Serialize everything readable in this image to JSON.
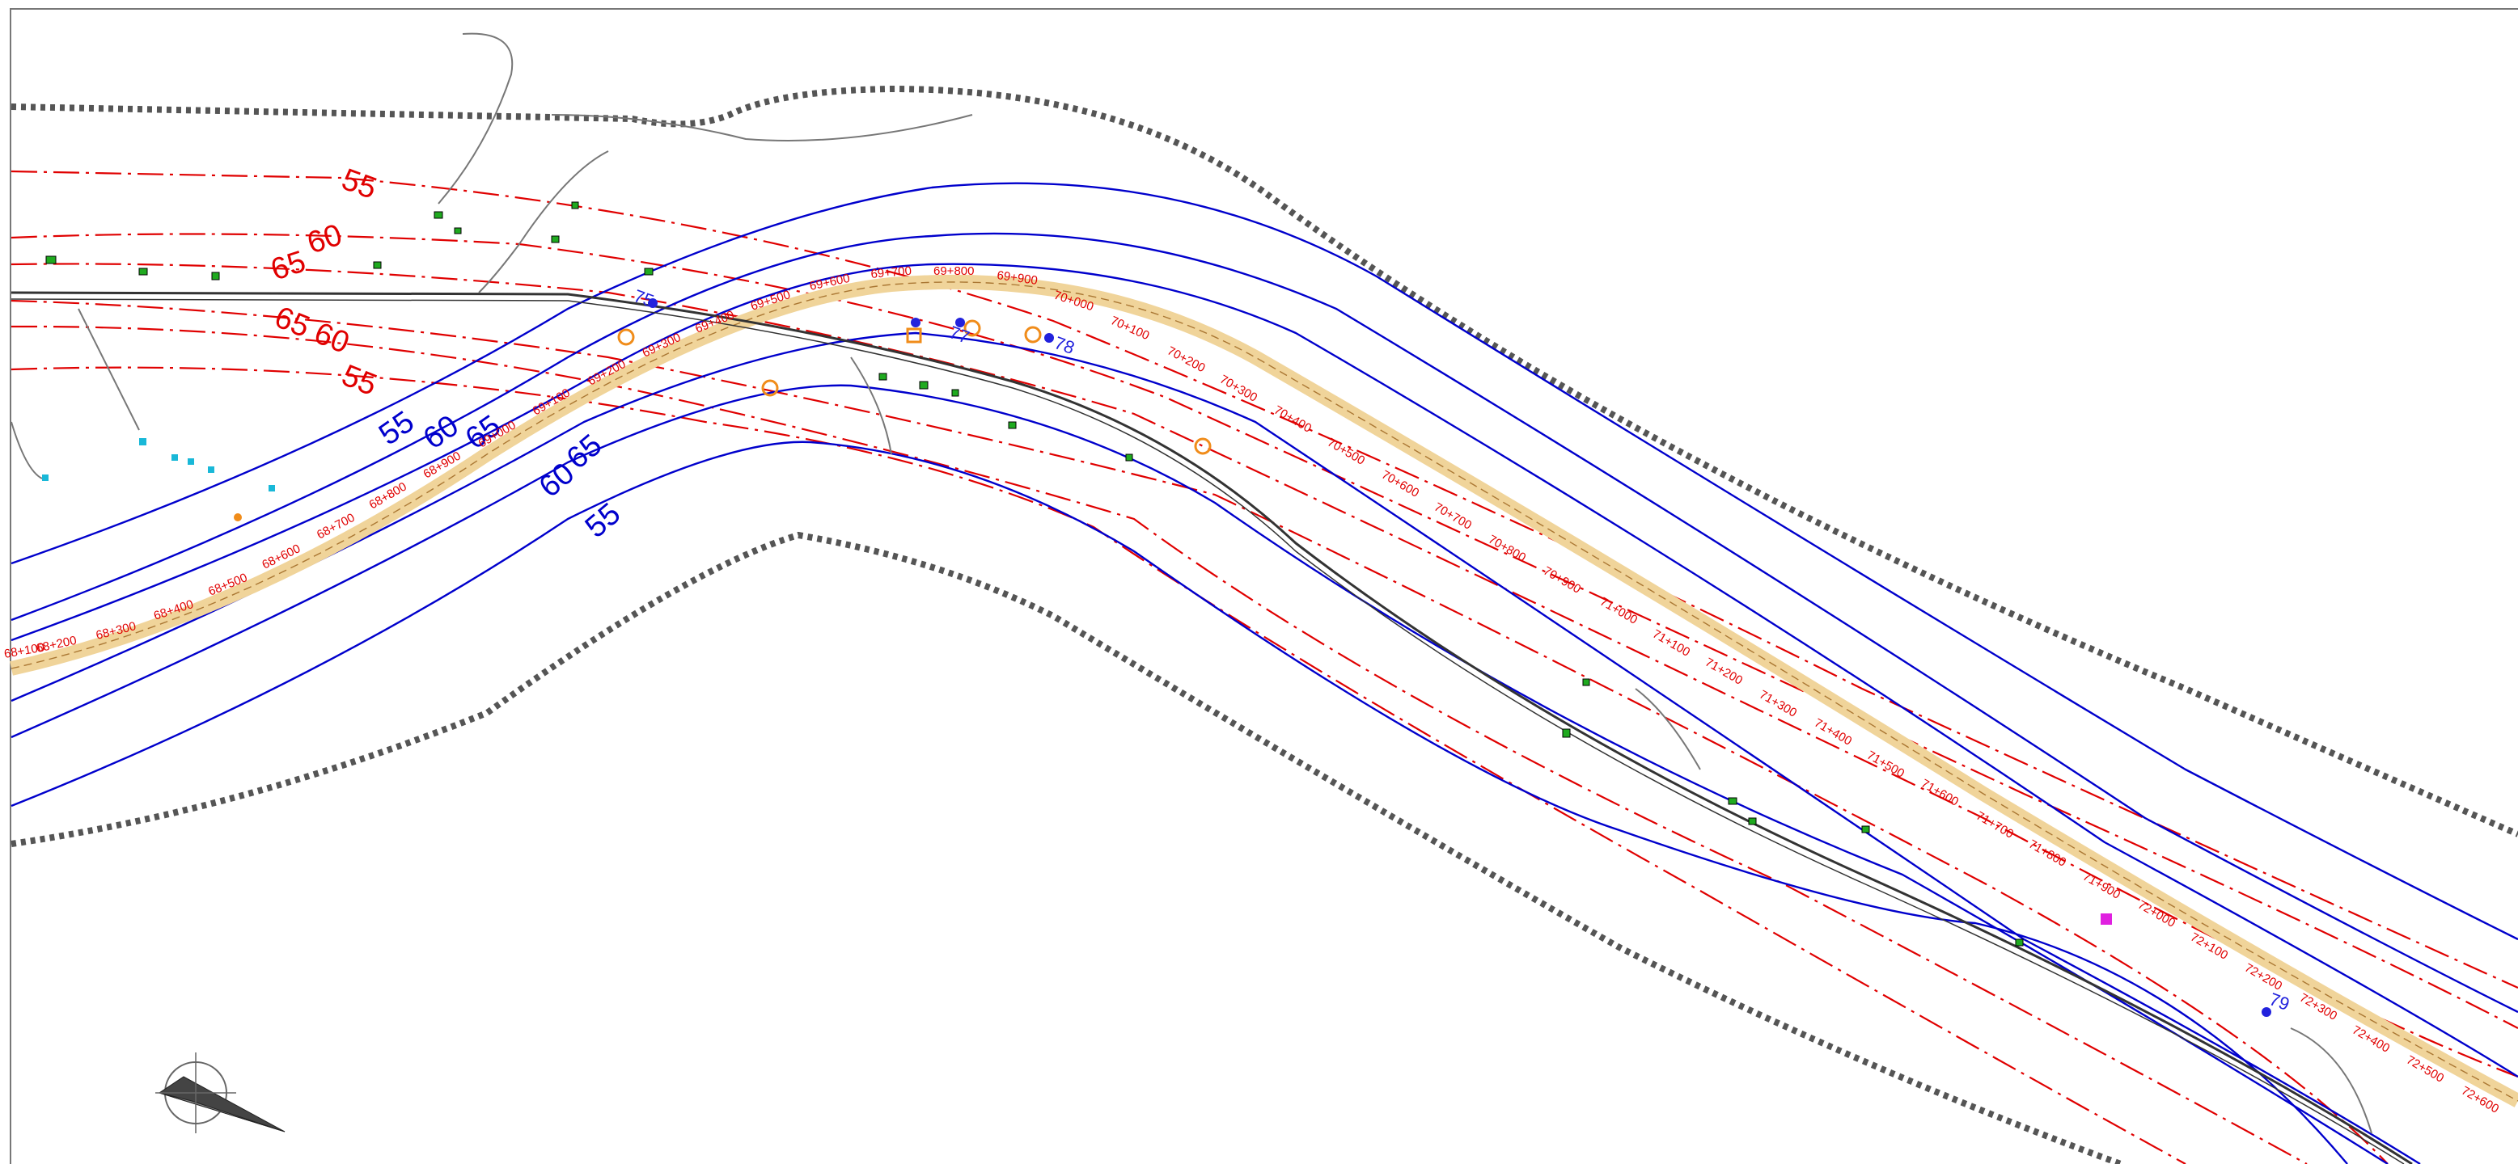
{
  "colors": {
    "red_contour": "#e00000",
    "blue_contour": "#0000cc",
    "boundary": "#555555",
    "road": "#333333",
    "corridor": "#f0d49a",
    "building": "#1faa1f",
    "cyan_feature": "#19b8d8",
    "orange_symbol": "#f08c1a",
    "receiver": "#2222dd",
    "magenta_marker": "#e020e0"
  },
  "icons": {
    "north_arrow": "compass-north-arrow-icon"
  },
  "red_labels": {
    "a_55_top": "55",
    "a_60": "60",
    "a_65": "65",
    "a_65_60": "65 60",
    "a_55_lower": "55"
  },
  "blue_labels": {
    "b_55": "55",
    "b_60": "60",
    "b_65": "65",
    "b_65_south": "65",
    "b_60_south": "60",
    "b_55_south": "55"
  },
  "receivers": {
    "r75": "75",
    "r77": "77",
    "r78": "78",
    "r79": "79"
  },
  "chainage": {
    "k68_100": "68+100",
    "k68_200": "68+200",
    "k68_300": "68+300",
    "k68_400": "68+400",
    "k68_500": "68+500",
    "k68_600": "68+600",
    "k68_700": "68+700",
    "k68_800": "68+800",
    "k68_900": "68+900",
    "k69_000": "69+000",
    "k69_100": "69+100",
    "k69_200": "69+200",
    "k69_300": "69+300",
    "k69_400": "69+400",
    "k69_500": "69+500",
    "k69_600": "69+600",
    "k69_700": "69+700",
    "k69_800": "69+800",
    "k69_900": "69+900",
    "k70_000": "70+000",
    "k70_100": "70+100",
    "k70_200": "70+200",
    "k70_300": "70+300",
    "k70_400": "70+400",
    "k70_500": "70+500",
    "k70_600": "70+600",
    "k70_700": "70+700",
    "k70_800": "70+800",
    "k70_900": "70+900",
    "k71_000": "71+000",
    "k71_100": "71+100",
    "k71_200": "71+200",
    "k71_300": "71+300",
    "k71_400": "71+400",
    "k71_500": "71+500",
    "k71_600": "71+600",
    "k71_700": "71+700",
    "k71_800": "71+800",
    "k71_900": "71+900",
    "k72_000": "72+000",
    "k72_100": "72+100",
    "k72_200": "72+200",
    "k72_300": "72+300",
    "k72_400": "72+400",
    "k72_500": "72+500",
    "k72_600": "72+600"
  }
}
